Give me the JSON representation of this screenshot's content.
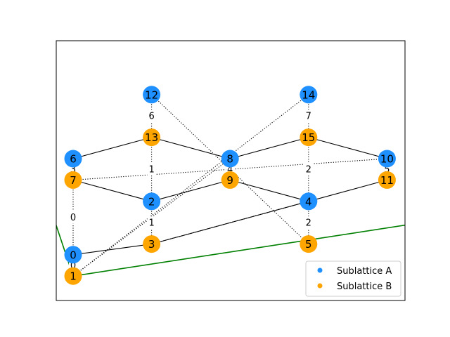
{
  "colors": {
    "sublattice_a": "#1e90ff",
    "sublattice_b": "#ffa500",
    "boundary_line": "#008000",
    "edge": "#000000"
  },
  "legend": {
    "placement": "lower-right",
    "entries": [
      {
        "label": "Sublattice A",
        "color": "#1e90ff"
      },
      {
        "label": "Sublattice B",
        "color": "#ffa500"
      }
    ]
  },
  "chart_data": {
    "type": "graph",
    "nodes": [
      {
        "id": "0",
        "label": "0",
        "sublattice": "A",
        "x": 0,
        "y": 0.5
      },
      {
        "id": "1",
        "label": "1",
        "sublattice": "B",
        "x": 0,
        "y": -0.5
      },
      {
        "id": "2",
        "label": "2",
        "sublattice": "A",
        "x": 1.5,
        "y": 3.0
      },
      {
        "id": "3",
        "label": "3",
        "sublattice": "B",
        "x": 1.5,
        "y": 1.0
      },
      {
        "id": "4",
        "label": "4",
        "sublattice": "A",
        "x": 4.5,
        "y": 3.0
      },
      {
        "id": "5",
        "label": "5",
        "sublattice": "B",
        "x": 4.5,
        "y": 1.0
      },
      {
        "id": "6",
        "label": "6",
        "sublattice": "A",
        "x": 0,
        "y": 5.0
      },
      {
        "id": "7",
        "label": "7",
        "sublattice": "B",
        "x": 0,
        "y": 4.0
      },
      {
        "id": "8",
        "label": "8",
        "sublattice": "A",
        "x": 3.0,
        "y": 5.0
      },
      {
        "id": "9",
        "label": "9",
        "sublattice": "B",
        "x": 3.0,
        "y": 4.0
      },
      {
        "id": "10",
        "label": "10",
        "sublattice": "A",
        "x": 6.0,
        "y": 5.0
      },
      {
        "id": "11",
        "label": "11",
        "sublattice": "B",
        "x": 6.0,
        "y": 4.0
      },
      {
        "id": "12",
        "label": "12",
        "sublattice": "A",
        "x": 1.5,
        "y": 8.0
      },
      {
        "id": "13",
        "label": "13",
        "sublattice": "B",
        "x": 1.5,
        "y": 6.0
      },
      {
        "id": "14",
        "label": "14",
        "sublattice": "A",
        "x": 4.5,
        "y": 8.0
      },
      {
        "id": "15",
        "label": "15",
        "sublattice": "B",
        "x": 4.5,
        "y": 6.0
      }
    ],
    "solid_edges": [
      [
        "0",
        "3"
      ],
      [
        "3",
        "4"
      ],
      [
        "4",
        "11"
      ],
      [
        "7",
        "2"
      ],
      [
        "2",
        "9"
      ],
      [
        "9",
        "4"
      ],
      [
        "6",
        "13"
      ],
      [
        "13",
        "8"
      ],
      [
        "8",
        "15"
      ],
      [
        "15",
        "10"
      ]
    ],
    "dotted_edges": [
      {
        "from": "0",
        "to": "1",
        "label": "0"
      },
      {
        "from": "7",
        "to": "0",
        "label": "0"
      },
      {
        "from": "2",
        "to": "3",
        "label": "1"
      },
      {
        "from": "13",
        "to": "2",
        "label": "1"
      },
      {
        "from": "4",
        "to": "5",
        "label": "2"
      },
      {
        "from": "15",
        "to": "4",
        "label": "2"
      },
      {
        "from": "6",
        "to": "7",
        "label": "3"
      },
      {
        "from": "8",
        "to": "9",
        "label": "4"
      },
      {
        "from": "10",
        "to": "11",
        "label": "5"
      },
      {
        "from": "12",
        "to": "13",
        "label": "6"
      },
      {
        "from": "14",
        "to": "15",
        "label": "7"
      },
      {
        "from": "1",
        "to": "14",
        "label": ""
      },
      {
        "from": "1",
        "to": "8",
        "label": ""
      },
      {
        "from": "12",
        "to": "5",
        "label": ""
      },
      {
        "from": "7",
        "to": "10",
        "label": ""
      },
      {
        "from": "3",
        "to": "4",
        "label": ""
      }
    ]
  }
}
